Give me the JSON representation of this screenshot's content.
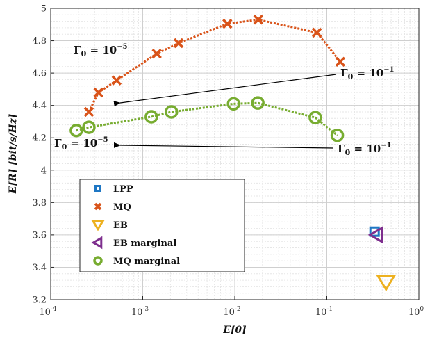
{
  "chart_data": {
    "type": "scatter",
    "xlabel": "E[θ]",
    "ylabel": "E[R] [bit/s/Hz]",
    "xscale": "log",
    "xlim": [
      0.0001,
      1
    ],
    "ylim": [
      3.2,
      5
    ],
    "grid": true,
    "legend_position": "bottom-left",
    "x_ticks": [
      {
        "value": 0.0001,
        "base": "10",
        "exp": "-4"
      },
      {
        "value": 0.001,
        "base": "10",
        "exp": "-3"
      },
      {
        "value": 0.01,
        "base": "10",
        "exp": "-2"
      },
      {
        "value": 0.1,
        "base": "10",
        "exp": "-1"
      },
      {
        "value": 1,
        "base": "10",
        "exp": "0"
      }
    ],
    "y_ticks": [
      "3.2",
      "3.4",
      "3.6",
      "3.8",
      "4",
      "4.2",
      "4.4",
      "4.6",
      "4.8",
      "5"
    ],
    "series": [
      {
        "name": "LPP",
        "marker": "square",
        "color": "#1f77c4",
        "line": false,
        "x": [
          0.33
        ],
        "y": [
          3.62
        ]
      },
      {
        "name": "MQ",
        "marker": "x",
        "color": "#d95319",
        "line": true,
        "x": [
          0.00026,
          0.00033,
          0.00052,
          0.00142,
          0.00245,
          0.0083,
          0.018,
          0.078,
          0.14
        ],
        "y": [
          4.36,
          4.48,
          4.555,
          4.72,
          4.785,
          4.905,
          4.93,
          4.85,
          4.67
        ]
      },
      {
        "name": "EB",
        "marker": "triangle-down",
        "color": "#edb120",
        "line": false,
        "x": [
          0.44
        ],
        "y": [
          3.31
        ]
      },
      {
        "name": "EB  marginal",
        "marker": "triangle-left",
        "color": "#7e2f8e",
        "line": false,
        "x": [
          0.35
        ],
        "y": [
          3.6
        ]
      },
      {
        "name": "MQ marginal",
        "marker": "circle",
        "color": "#77ac30",
        "line": true,
        "x": [
          0.00019,
          0.00026,
          0.00124,
          0.00205,
          0.0097,
          0.0178,
          0.075,
          0.13
        ],
        "y": [
          4.245,
          4.265,
          4.33,
          4.36,
          4.41,
          4.415,
          4.325,
          4.215
        ]
      }
    ],
    "annotations": [
      {
        "label": "Γ₀ = 10⁻⁵",
        "base": "Γ",
        "sub": "0",
        "eq": " = 10",
        "exp": "−5",
        "arrow": false
      },
      {
        "label": "Γ₀ = 10⁻¹",
        "base": "Γ",
        "sub": "0",
        "eq": " = 10",
        "exp": "−1",
        "arrow": true
      },
      {
        "label": "Γ₀ = 10⁻⁵",
        "base": "Γ",
        "sub": "0",
        "eq": " = 10",
        "exp": "−5",
        "arrow": false
      },
      {
        "label": "Γ₀ = 10⁻¹",
        "base": "Γ",
        "sub": "0",
        "eq": " = 10",
        "exp": "−1",
        "arrow": true
      }
    ]
  }
}
